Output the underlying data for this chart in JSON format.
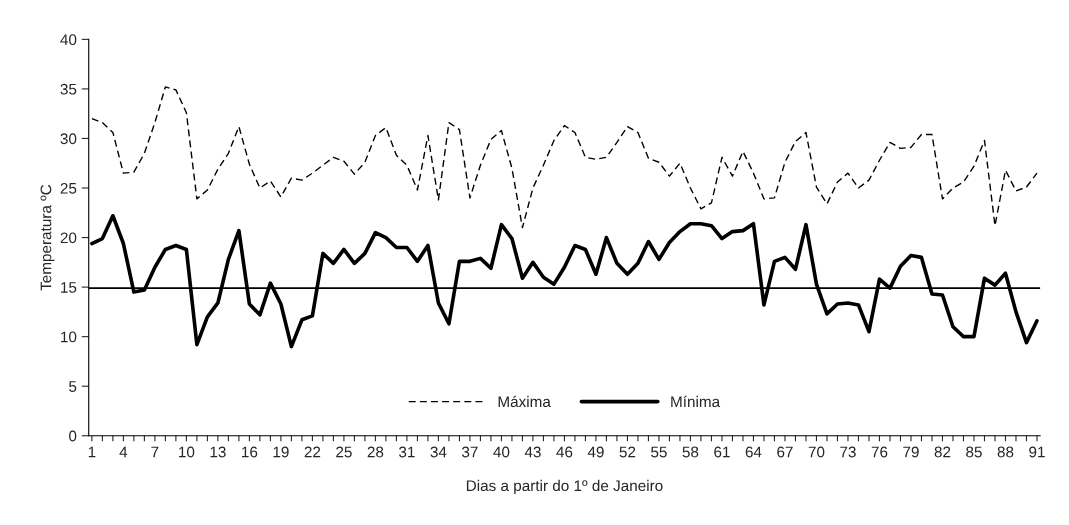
{
  "chart_data": {
    "type": "line",
    "xlabel": "Dias a partir do 1º de Janeiro",
    "ylabel": "Temperatura ºC",
    "categories": [
      "1",
      null,
      null,
      "4",
      null,
      null,
      "7",
      null,
      null,
      "10",
      null,
      null,
      "13",
      null,
      null,
      "16",
      null,
      null,
      "19",
      null,
      null,
      "22",
      null,
      null,
      "25",
      null,
      null,
      "28",
      null,
      null,
      "31",
      null,
      null,
      "34",
      null,
      null,
      "37",
      null,
      null,
      "40",
      null,
      null,
      "43",
      null,
      null,
      "46",
      null,
      null,
      "49",
      null,
      null,
      "52",
      null,
      null,
      "55",
      null,
      null,
      "58",
      null,
      null,
      "61",
      null,
      null,
      "64",
      null,
      null,
      "67",
      null,
      null,
      "70",
      null,
      null,
      "73",
      null,
      null,
      "76",
      null,
      null,
      "79",
      null,
      null,
      "82",
      null,
      null,
      "85",
      null,
      null,
      "88",
      null,
      null,
      "91"
    ],
    "series": [
      {
        "name": "Máxima",
        "color": "#000000",
        "line_style": "dashed",
        "values": [
          32.0,
          31.6,
          30.6,
          26.5,
          26.6,
          28.5,
          31.6,
          35.2,
          34.9,
          32.6,
          23.9,
          24.8,
          26.9,
          28.5,
          31.2,
          27.4,
          25.0,
          25.7,
          24.1,
          26.0,
          25.8,
          26.5,
          27.3,
          28.1,
          27.7,
          26.4,
          27.6,
          30.3,
          31.1,
          28.3,
          27.3,
          24.8,
          30.3,
          23.8,
          31.6,
          30.9,
          24.0,
          27.3,
          29.9,
          30.8,
          27.0,
          21.0,
          25.0,
          27.3,
          29.8,
          31.3,
          30.6,
          28.1,
          27.9,
          28.1,
          29.6,
          31.2,
          30.6,
          28.0,
          27.6,
          26.2,
          27.5,
          25.0,
          22.9,
          23.5,
          28.1,
          26.2,
          28.7,
          26.5,
          23.9,
          24.0,
          27.6,
          29.7,
          30.6,
          25.1,
          23.4,
          25.6,
          26.5,
          25.0,
          25.8,
          27.8,
          29.6,
          29.0,
          29.1,
          30.4,
          30.4,
          23.9,
          25.0,
          25.6,
          27.2,
          29.8,
          21.2,
          26.8,
          24.7,
          25.1,
          26.5
        ]
      },
      {
        "name": "Mínima",
        "color": "#000000",
        "line_style": "solid",
        "values": [
          19.4,
          19.9,
          22.2,
          19.4,
          14.5,
          14.7,
          17.0,
          18.8,
          19.2,
          18.8,
          9.2,
          12.0,
          13.4,
          17.8,
          20.7,
          13.3,
          12.2,
          15.4,
          13.3,
          9.0,
          11.7,
          12.1,
          18.4,
          17.4,
          18.8,
          17.4,
          18.4,
          20.5,
          20.0,
          19.0,
          19.0,
          17.6,
          19.2,
          13.4,
          11.3,
          17.6,
          17.6,
          17.9,
          16.9,
          21.3,
          19.9,
          15.9,
          17.5,
          16.0,
          15.3,
          17.0,
          19.2,
          18.8,
          16.3,
          20.0,
          17.4,
          16.3,
          17.4,
          19.6,
          17.8,
          19.5,
          20.6,
          21.4,
          21.4,
          21.2,
          19.9,
          20.6,
          20.7,
          21.4,
          13.2,
          17.6,
          18.0,
          16.8,
          21.3,
          15.3,
          12.3,
          13.3,
          13.4,
          13.2,
          10.5,
          15.8,
          14.9,
          17.1,
          18.2,
          18.0,
          14.3,
          14.2,
          11.0,
          10.0,
          10.0,
          15.9,
          15.2,
          16.4,
          12.5,
          9.4,
          11.6
        ]
      }
    ],
    "ref_lines": [
      {
        "axis": "y",
        "value": 14.9,
        "color": "#000000",
        "line_style": "solid"
      }
    ],
    "ylim": [
      0,
      40
    ],
    "yticks": [
      0,
      5,
      10,
      15,
      20,
      25,
      30,
      35,
      40
    ],
    "grid": false,
    "legend": "bottom",
    "marker": "none"
  }
}
